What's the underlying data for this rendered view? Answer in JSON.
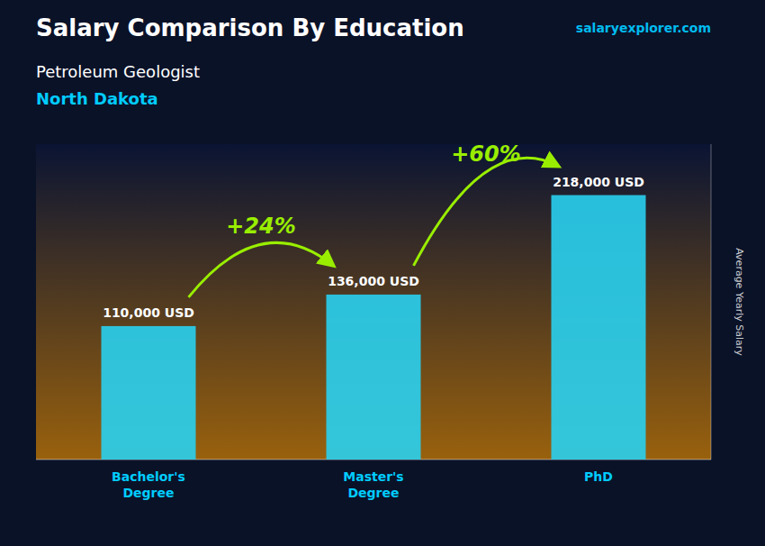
{
  "chart_data": {
    "type": "bar",
    "title": "Salary Comparison By Education",
    "subtitle": [
      "Petroleum Geologist",
      "North Dakota"
    ],
    "y_label": "Average Yearly Salary",
    "categories": [
      "Bachelor's\nDegree",
      "Master's\nDegree",
      "PhD"
    ],
    "values": [
      110000,
      136000,
      218000
    ],
    "value_labels": [
      "110,000 USD",
      "136,000 USD",
      "218,000 USD"
    ],
    "data_labels": true,
    "annotations": [
      "+24%",
      "+60%",
      "salaryexplorer.com"
    ],
    "color": "#29d0f0",
    "ylim": [
      0,
      260000
    ],
    "tick_labels": false,
    "grid": false
  }
}
